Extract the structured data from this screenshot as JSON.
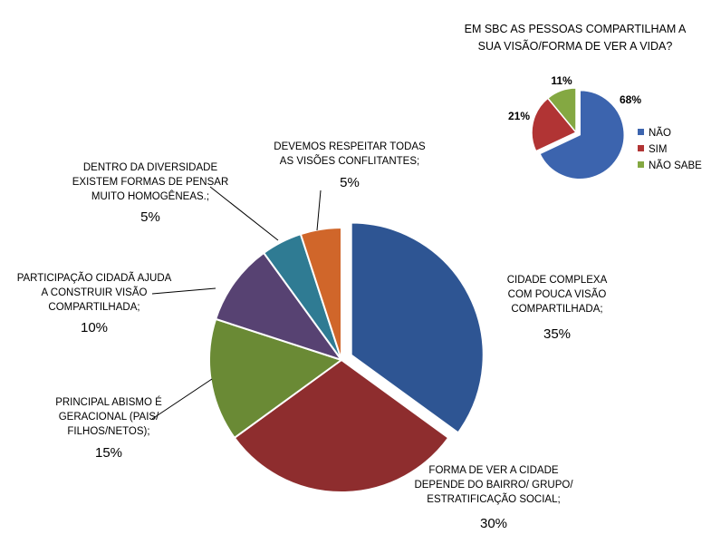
{
  "chart_data": [
    {
      "type": "pie",
      "title": "",
      "exploded": true,
      "slices": [
        {
          "label": [
            "CIDADE COMPLEXA",
            "COM POUCA VISÃO",
            "COMPARTILHADA;"
          ],
          "pct_text": "35%",
          "value": 35,
          "color": "#2E5593"
        },
        {
          "label": [
            "FORMA DE VER A CIDADE",
            "DEPENDE DO BAIRRO/ GRUPO/",
            "ESTRATIFICAÇÃO SOCIAL;"
          ],
          "pct_text": "30%",
          "value": 30,
          "color": "#8E2D2E"
        },
        {
          "label": [
            "PRINCIPAL ABISMO É",
            "GERACIONAL (PAIS/",
            "FILHOS/NETOS);"
          ],
          "pct_text": "15%",
          "value": 15,
          "color": "#6A8A35"
        },
        {
          "label": [
            "PARTICIPAÇÃO CIDADÃ AJUDA",
            "A CONSTRUIR VISÃO",
            "COMPARTILHADA;"
          ],
          "pct_text": "10%",
          "value": 10,
          "color": "#574272"
        },
        {
          "label": [
            "DENTRO DA DIVERSIDADE",
            "EXISTEM FORMAS DE PENSAR",
            "MUITO HOMOGÊNEAS.;"
          ],
          "pct_text": "5%",
          "value": 5,
          "color": "#2F7B93"
        },
        {
          "label": [
            "DEVEMOS RESPEITAR TODAS",
            "AS VISÕES CONFLITANTES;"
          ],
          "pct_text": "5%",
          "value": 5,
          "color": "#D0662A"
        }
      ]
    },
    {
      "type": "pie",
      "title": [
        "EM SBC AS PESSOAS COMPARTILHAM A",
        "SUA VISÃO/FORMA DE VER A VIDA?"
      ],
      "legend_position": "right",
      "slices": [
        {
          "label": "NÃO",
          "pct_text": "68%",
          "value": 68,
          "color": "#3C64AE"
        },
        {
          "label": "SIM",
          "pct_text": "21%",
          "value": 21,
          "color": "#B13434"
        },
        {
          "label": "NÃO SABE",
          "pct_text": "11%",
          "value": 11,
          "color": "#84A842"
        }
      ]
    }
  ]
}
